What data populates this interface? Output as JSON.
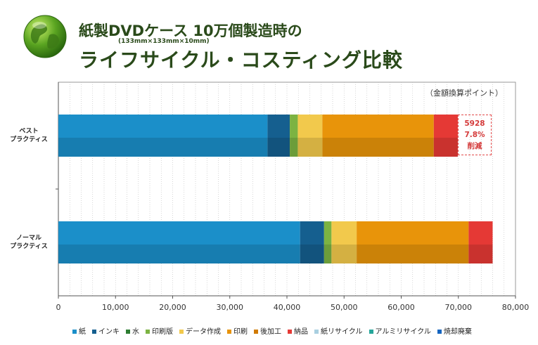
{
  "header": {
    "title_line1": "紙製DVDケース 10万個製造時の",
    "subtitle": "(133mm×133mm×10mm)",
    "title_line2": "ライフサイクル・コスティング比較"
  },
  "unit_note": "（金額換算ポイント）",
  "annotation": {
    "value": "5928",
    "percent": "7.8%",
    "label": "削減"
  },
  "chart_data": {
    "type": "bar",
    "orientation": "horizontal",
    "stacked": true,
    "categories": [
      "ベスト\nプラクティス",
      "ノーマル\nプラクティス"
    ],
    "category_lines": [
      [
        "ベスト",
        "プラクティス"
      ],
      [
        "ノーマル",
        "プラクティス"
      ]
    ],
    "series": [
      {
        "name": "紙",
        "color": "#1b8fc9",
        "values": [
          36600,
          42300
        ]
      },
      {
        "name": "インキ",
        "color": "#155f8f",
        "values": [
          3900,
          4200
        ]
      },
      {
        "name": "水",
        "color": "#2e7d32",
        "values": [
          0,
          0
        ]
      },
      {
        "name": "印刷版",
        "color": "#7cb342",
        "values": [
          1400,
          1300
        ]
      },
      {
        "name": "データ作成",
        "color": "#f2c94c",
        "values": [
          4300,
          4400
        ]
      },
      {
        "name": "印刷",
        "color": "#e8940a",
        "values": [
          19500,
          19600
        ]
      },
      {
        "name": "後加工",
        "color": "#d07a00",
        "values": [
          0,
          0
        ]
      },
      {
        "name": "納品",
        "color": "#e53935",
        "values": [
          4200,
          4200
        ]
      },
      {
        "name": "紙リサイクル",
        "color": "#a9cfe0",
        "values": [
          0,
          0
        ]
      },
      {
        "name": "アルミリサイクル",
        "color": "#26a69a",
        "values": [
          0,
          0
        ]
      },
      {
        "name": "焼却廃棄",
        "color": "#1565c0",
        "values": [
          0,
          0
        ]
      }
    ],
    "xlim": [
      0,
      80000
    ],
    "xticks": [
      "0",
      "10,000",
      "20,000",
      "30,000",
      "40,000",
      "50,000",
      "60,000",
      "70,000",
      "80,000"
    ],
    "xlabel": "",
    "ylabel": "",
    "grid": true,
    "legend_position": "bottom"
  }
}
